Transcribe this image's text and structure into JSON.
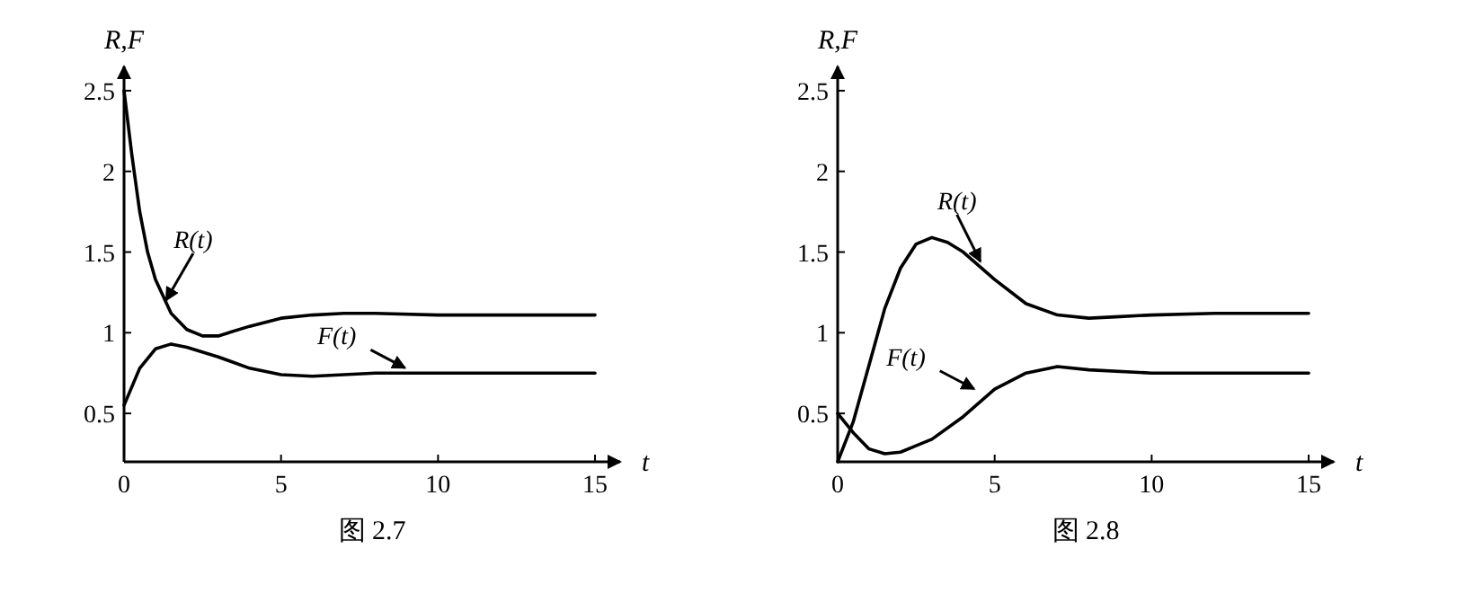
{
  "chart_data": [
    {
      "type": "line",
      "title": "图 2.7",
      "xlabel": "t",
      "ylabel": "R,F",
      "xlim": [
        0,
        15.8
      ],
      "ylim": [
        0.2,
        2.65
      ],
      "xticks": [
        0,
        5,
        10,
        15
      ],
      "yticks": [
        0.5,
        1,
        1.5,
        2,
        2.5
      ],
      "grid": false,
      "marker": "none",
      "line_style": "solid",
      "series": [
        {
          "color": "#000000",
          "x": [
            0,
            0.25,
            0.5,
            0.75,
            1,
            1.5,
            2,
            2.5,
            3,
            4,
            5,
            6,
            7,
            8,
            10,
            15
          ],
          "values": [
            2.5,
            2.1,
            1.75,
            1.5,
            1.33,
            1.12,
            1.02,
            0.98,
            0.98,
            1.04,
            1.09,
            1.11,
            1.12,
            1.12,
            1.11,
            1.11
          ]
        },
        {
          "color": "#000000",
          "x": [
            0,
            0.5,
            1,
            1.5,
            2,
            3,
            4,
            5,
            6,
            7,
            8,
            10,
            15
          ],
          "values": [
            0.55,
            0.78,
            0.9,
            0.93,
            0.91,
            0.85,
            0.78,
            0.74,
            0.73,
            0.74,
            0.75,
            0.75,
            0.75
          ]
        }
      ],
      "annotations": [
        {
          "text": "R(t)",
          "x": 1.4,
          "y": 1.18
        },
        {
          "text": "F(t)",
          "x": 9,
          "y": 0.76
        }
      ]
    },
    {
      "type": "line",
      "title": "图 2.8",
      "xlabel": "t",
      "ylabel": "R,F",
      "xlim": [
        0,
        15.8
      ],
      "ylim": [
        0.2,
        2.65
      ],
      "xticks": [
        0,
        5,
        10,
        15
      ],
      "yticks": [
        0.5,
        1,
        1.5,
        2,
        2.5
      ],
      "grid": false,
      "marker": "none",
      "line_style": "solid",
      "series": [
        {
          "color": "#000000",
          "x": [
            0,
            0.5,
            1,
            1.5,
            2,
            2.5,
            3,
            3.5,
            4,
            5,
            6,
            7,
            8,
            9,
            10,
            12,
            15
          ],
          "values": [
            0.2,
            0.45,
            0.8,
            1.15,
            1.4,
            1.55,
            1.59,
            1.56,
            1.5,
            1.33,
            1.18,
            1.11,
            1.09,
            1.1,
            1.11,
            1.12,
            1.12
          ]
        },
        {
          "color": "#000000",
          "x": [
            0,
            0.5,
            1,
            1.5,
            2,
            3,
            4,
            5,
            6,
            7,
            8,
            10,
            15
          ],
          "values": [
            0.5,
            0.38,
            0.28,
            0.25,
            0.26,
            0.34,
            0.48,
            0.65,
            0.75,
            0.79,
            0.77,
            0.75,
            0.75
          ]
        }
      ],
      "annotations": [
        {
          "text": "R(t)",
          "x": 4.6,
          "y": 1.42
        },
        {
          "text": "F(t)",
          "x": 4.4,
          "y": 0.63
        }
      ]
    }
  ]
}
